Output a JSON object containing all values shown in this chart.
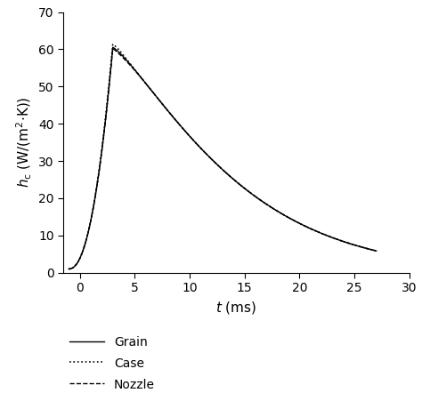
{
  "title": "",
  "xlabel": "t (ms)",
  "xlim": [
    -1.5,
    30
  ],
  "ylim": [
    0,
    70
  ],
  "xticks": [
    0,
    5,
    10,
    15,
    20,
    25,
    30
  ],
  "yticks": [
    0,
    10,
    20,
    30,
    40,
    50,
    60,
    70
  ],
  "background_color": "#ffffff",
  "line_color": "#000000",
  "legend_entries": [
    "Grain",
    "Case",
    "Nozzle"
  ],
  "legend_styles": [
    "solid",
    "dotted",
    "dashed"
  ],
  "figsize": [
    4.74,
    4.51
  ],
  "dpi": 100,
  "peak_t": 3.0,
  "peak_y": 60.5,
  "end_t": 27.0,
  "end_y": 6.0,
  "start_t": -1.0,
  "start_y": 1.0
}
